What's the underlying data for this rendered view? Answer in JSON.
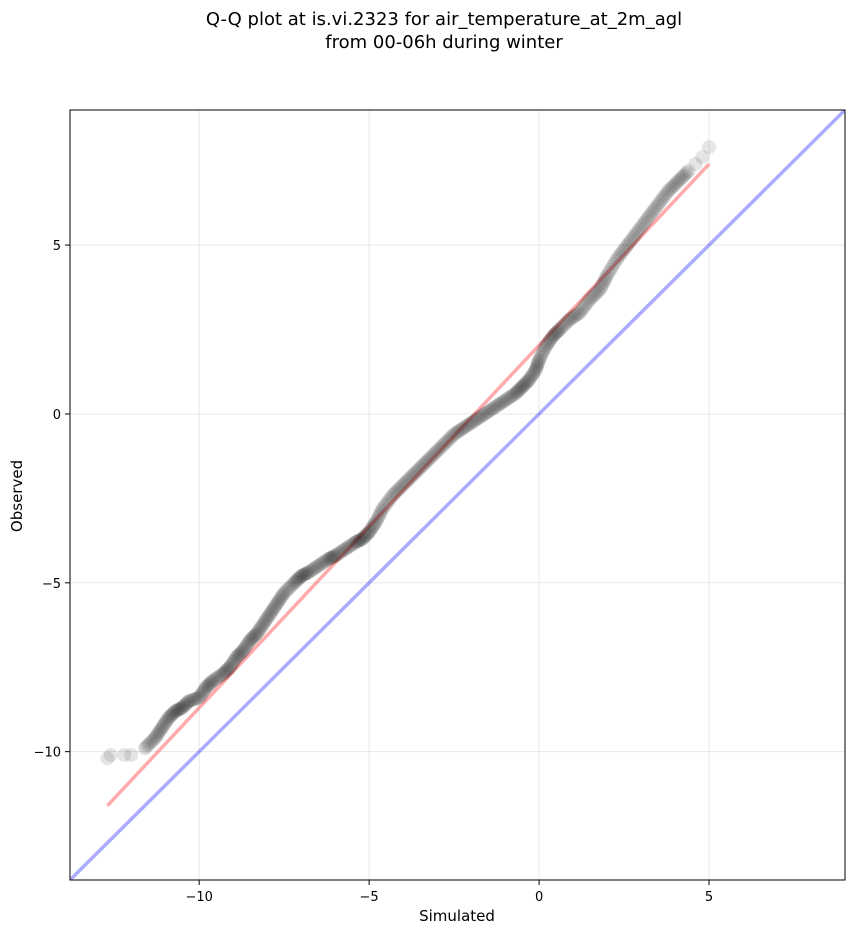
{
  "chart_data": {
    "type": "scatter",
    "title_line1": "Q-Q plot at is.vi.2323 for air_temperature_at_2m_agl",
    "title_line2": "from 00-06h during winter",
    "xlabel": "Simulated",
    "ylabel": "Observed",
    "xlim": [
      -13.8,
      9.0
    ],
    "ylim": [
      -13.8,
      9.0
    ],
    "xticks": [
      -10,
      -5,
      0,
      5
    ],
    "yticks": [
      -10,
      -5,
      0,
      5
    ],
    "xtick_labels": [
      "−10",
      "−5",
      "0",
      "5"
    ],
    "ytick_labels": [
      "−10",
      "−5",
      "0",
      "5"
    ],
    "grid": true,
    "colors": {
      "points": "#000000",
      "fit_line": "#ff0000",
      "identity_line": "#0000ff"
    },
    "series": [
      {
        "kind": "quantile points",
        "x": [
          -12.7,
          -12.6,
          -12.2,
          -12.0,
          -11.6,
          -11.3,
          -11.1,
          -10.9,
          -10.7,
          -10.5,
          -10.3,
          -10.0,
          -9.8,
          -9.6,
          -9.3,
          -9.1,
          -8.9,
          -8.7,
          -8.5,
          -8.3,
          -8.1,
          -7.9,
          -7.7,
          -7.5,
          -7.2,
          -7.0,
          -6.8,
          -6.5,
          -6.2,
          -6.0,
          -5.7,
          -5.4,
          -5.2,
          -5.0,
          -4.8,
          -4.6,
          -4.3,
          -4.0,
          -3.7,
          -3.4,
          -3.1,
          -2.8,
          -2.5,
          -2.2,
          -1.9,
          -1.6,
          -1.3,
          -1.0,
          -0.7,
          -0.5,
          -0.3,
          -0.1,
          0.0,
          0.2,
          0.4,
          0.6,
          0.9,
          1.2,
          1.5,
          1.8,
          2.0,
          2.3,
          2.6,
          2.9,
          3.2,
          3.5,
          3.8,
          4.1,
          4.4,
          4.6,
          4.8,
          5.0
        ],
        "y": [
          -10.2,
          -10.1,
          -10.1,
          -10.1,
          -9.9,
          -9.6,
          -9.3,
          -9.0,
          -8.8,
          -8.7,
          -8.5,
          -8.4,
          -8.1,
          -7.9,
          -7.7,
          -7.5,
          -7.2,
          -7.0,
          -6.7,
          -6.5,
          -6.2,
          -5.9,
          -5.6,
          -5.3,
          -5.0,
          -4.8,
          -4.7,
          -4.5,
          -4.3,
          -4.2,
          -4.0,
          -3.8,
          -3.7,
          -3.5,
          -3.2,
          -2.8,
          -2.4,
          -2.1,
          -1.8,
          -1.5,
          -1.2,
          -0.9,
          -0.6,
          -0.4,
          -0.2,
          0.0,
          0.2,
          0.4,
          0.6,
          0.8,
          1.0,
          1.3,
          1.6,
          2.0,
          2.3,
          2.5,
          2.8,
          3.0,
          3.4,
          3.7,
          4.1,
          4.6,
          5.0,
          5.4,
          5.8,
          6.2,
          6.6,
          6.9,
          7.2,
          7.4,
          7.6,
          7.9
        ]
      },
      {
        "kind": "fit line",
        "x": [
          -12.7,
          5.0
        ],
        "y": [
          -11.6,
          7.4
        ]
      },
      {
        "kind": "identity line",
        "x": [
          -13.8,
          9.0
        ],
        "y": [
          -13.8,
          9.0
        ]
      }
    ]
  }
}
